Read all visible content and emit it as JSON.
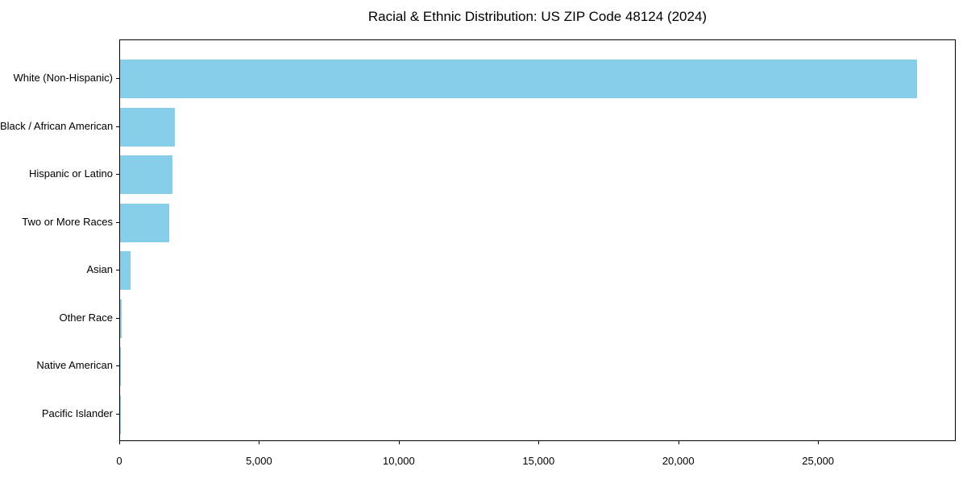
{
  "chart_data": {
    "type": "bar",
    "orientation": "horizontal",
    "title": "Racial & Ethnic Distribution: US ZIP Code 48124 (2024)",
    "categories": [
      "White (Non-Hispanic)",
      "Black / African American",
      "Hispanic or Latino",
      "Two or More Races",
      "Asian",
      "Other Race",
      "Native American",
      "Pacific Islander"
    ],
    "values": [
      28500,
      1970,
      1860,
      1750,
      370,
      50,
      15,
      5
    ],
    "bar_color": "#87CEEB",
    "text_color": "#000000",
    "axis_color": "#000000",
    "background_color": "#ffffff",
    "xlim": [
      0,
      29925
    ],
    "x_ticks": [
      0,
      5000,
      10000,
      15000,
      20000,
      25000
    ],
    "x_tick_labels": [
      "0",
      "5,000",
      "10,000",
      "15,000",
      "20,000",
      "25,000"
    ],
    "xlabel": "",
    "ylabel": "",
    "grid": false,
    "legend": false
  }
}
